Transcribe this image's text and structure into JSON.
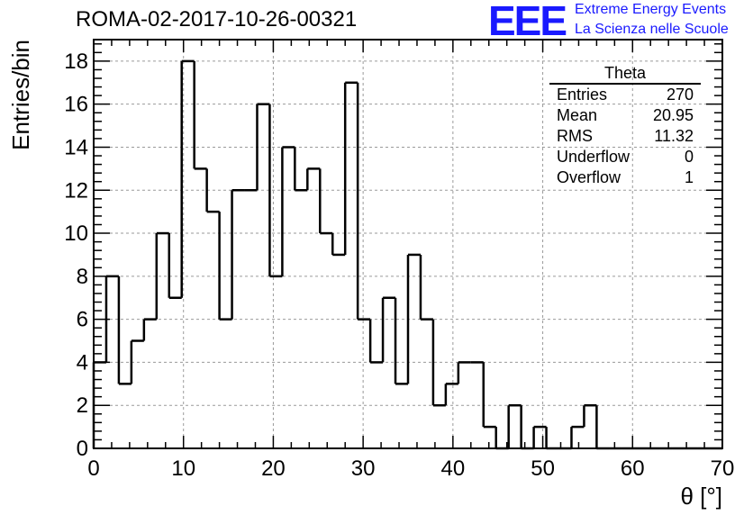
{
  "title": "ROMA-02-2017-10-26-00321",
  "logo": {
    "mark": "EEE",
    "line1": "Extreme Energy Events",
    "line2": "La Scienza nelle Scuole",
    "color": "#1a1aff"
  },
  "stats_box": {
    "name": "Theta",
    "rows": [
      {
        "label": "Entries",
        "value": "270"
      },
      {
        "label": "Mean",
        "value": "20.95"
      },
      {
        "label": "RMS",
        "value": "11.32"
      },
      {
        "label": "Underflow",
        "value": "0"
      },
      {
        "label": "Overflow",
        "value": "1"
      }
    ]
  },
  "chart_data": {
    "type": "bar",
    "style": "step-histogram",
    "xlabel": "θ [°]",
    "ylabel": "Entries/bin",
    "xlim": [
      0,
      70
    ],
    "ylim": [
      0,
      19
    ],
    "bin_width": 1.4,
    "x_ticks": [
      0,
      10,
      20,
      30,
      40,
      50,
      60,
      70
    ],
    "y_ticks": [
      0,
      2,
      4,
      6,
      8,
      10,
      12,
      14,
      16,
      18
    ],
    "grid": true,
    "values": [
      4,
      8,
      3,
      5,
      6,
      10,
      7,
      18,
      13,
      11,
      6,
      12,
      12,
      16,
      8,
      14,
      12,
      13,
      10,
      9,
      17,
      6,
      4,
      7,
      3,
      9,
      6,
      2,
      3,
      4,
      4,
      1,
      0,
      2,
      0,
      1,
      0,
      0,
      1,
      2,
      0,
      0,
      0,
      0,
      0,
      0,
      0,
      0,
      0,
      0
    ]
  }
}
